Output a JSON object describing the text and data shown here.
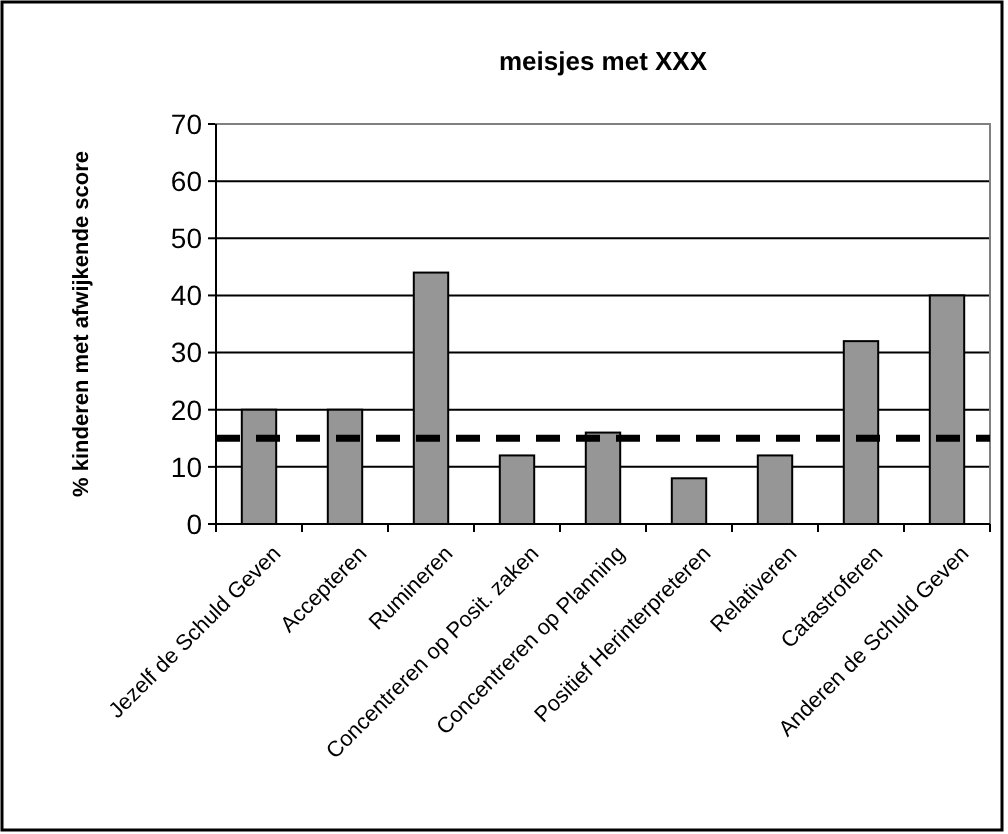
{
  "chart_data": {
    "type": "bar",
    "title": "meisjes met XXX",
    "ylabel": "% kinderen met afwijkende score",
    "categories": [
      "Jezelf de Schuld Geven",
      "Accepteren",
      "Rumineren",
      "Concentreren op Posit. zaken",
      "Concentreren op Planning",
      "Positief Herinterpreteren",
      "Relativeren",
      "Catastroferen",
      "Anderen de Schuld Geven"
    ],
    "values": [
      20,
      20,
      44,
      12,
      16,
      8,
      12,
      32,
      40
    ],
    "color": "#969696",
    "ylim": [
      0,
      70
    ],
    "yticks": [
      0,
      10,
      20,
      30,
      40,
      50,
      60,
      70
    ],
    "grid": "y",
    "ref_lines": [
      {
        "axis": "y",
        "value": 15,
        "color": "#000000",
        "line_style": "dashed"
      }
    ]
  }
}
